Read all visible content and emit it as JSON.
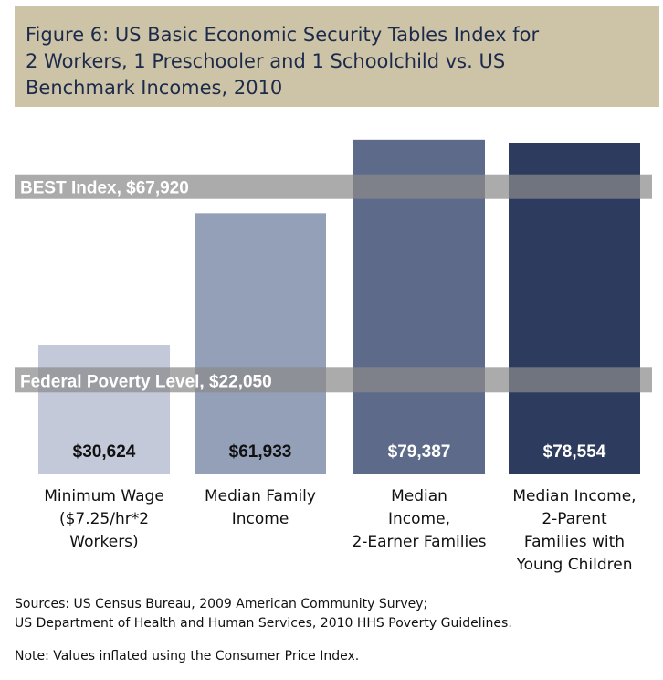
{
  "header": {
    "title_lines": [
      "Figure 6: US Basic Economic Security Tables Index for",
      "2 Workers, 1 Preschooler and 1 Schoolchild vs. US",
      "Benchmark Incomes, 2010"
    ]
  },
  "chart_data": {
    "type": "bar",
    "categories": [
      [
        "Minimum Wage",
        "($7.25/hr*2",
        "Workers)"
      ],
      [
        "Median Family",
        "Income"
      ],
      [
        "Median",
        "Income,",
        "2-Earner Families"
      ],
      [
        "Median Income,",
        "2-Parent",
        "Families with",
        "Young Children"
      ]
    ],
    "values": [
      30624,
      61933,
      79387,
      78554
    ],
    "value_labels": [
      "$30,624",
      "$61,933",
      "$79,387",
      "$78,554"
    ],
    "bar_colors": [
      "#c4c9d9",
      "#94a0b8",
      "#5d6a8a",
      "#2d3b5e"
    ],
    "value_label_colors": [
      "#111111",
      "#111111",
      "#ffffff",
      "#ffffff"
    ],
    "reference_lines": [
      {
        "label": "BEST Index,  $67,920",
        "value": 67920
      },
      {
        "label": "Federal Poverty Level, $22,050",
        "value": 22050
      }
    ],
    "ylim": [
      0,
      80000
    ],
    "grid": false,
    "xlabel": "",
    "ylabel": ""
  },
  "sources": [
    "Sources: US Census Bureau, 2009 American Community Survey;",
    "US Department of Health and Human Services, 2010 HHS Poverty Guidelines."
  ],
  "note": "Note: Values inflated using the Consumer Price Index."
}
